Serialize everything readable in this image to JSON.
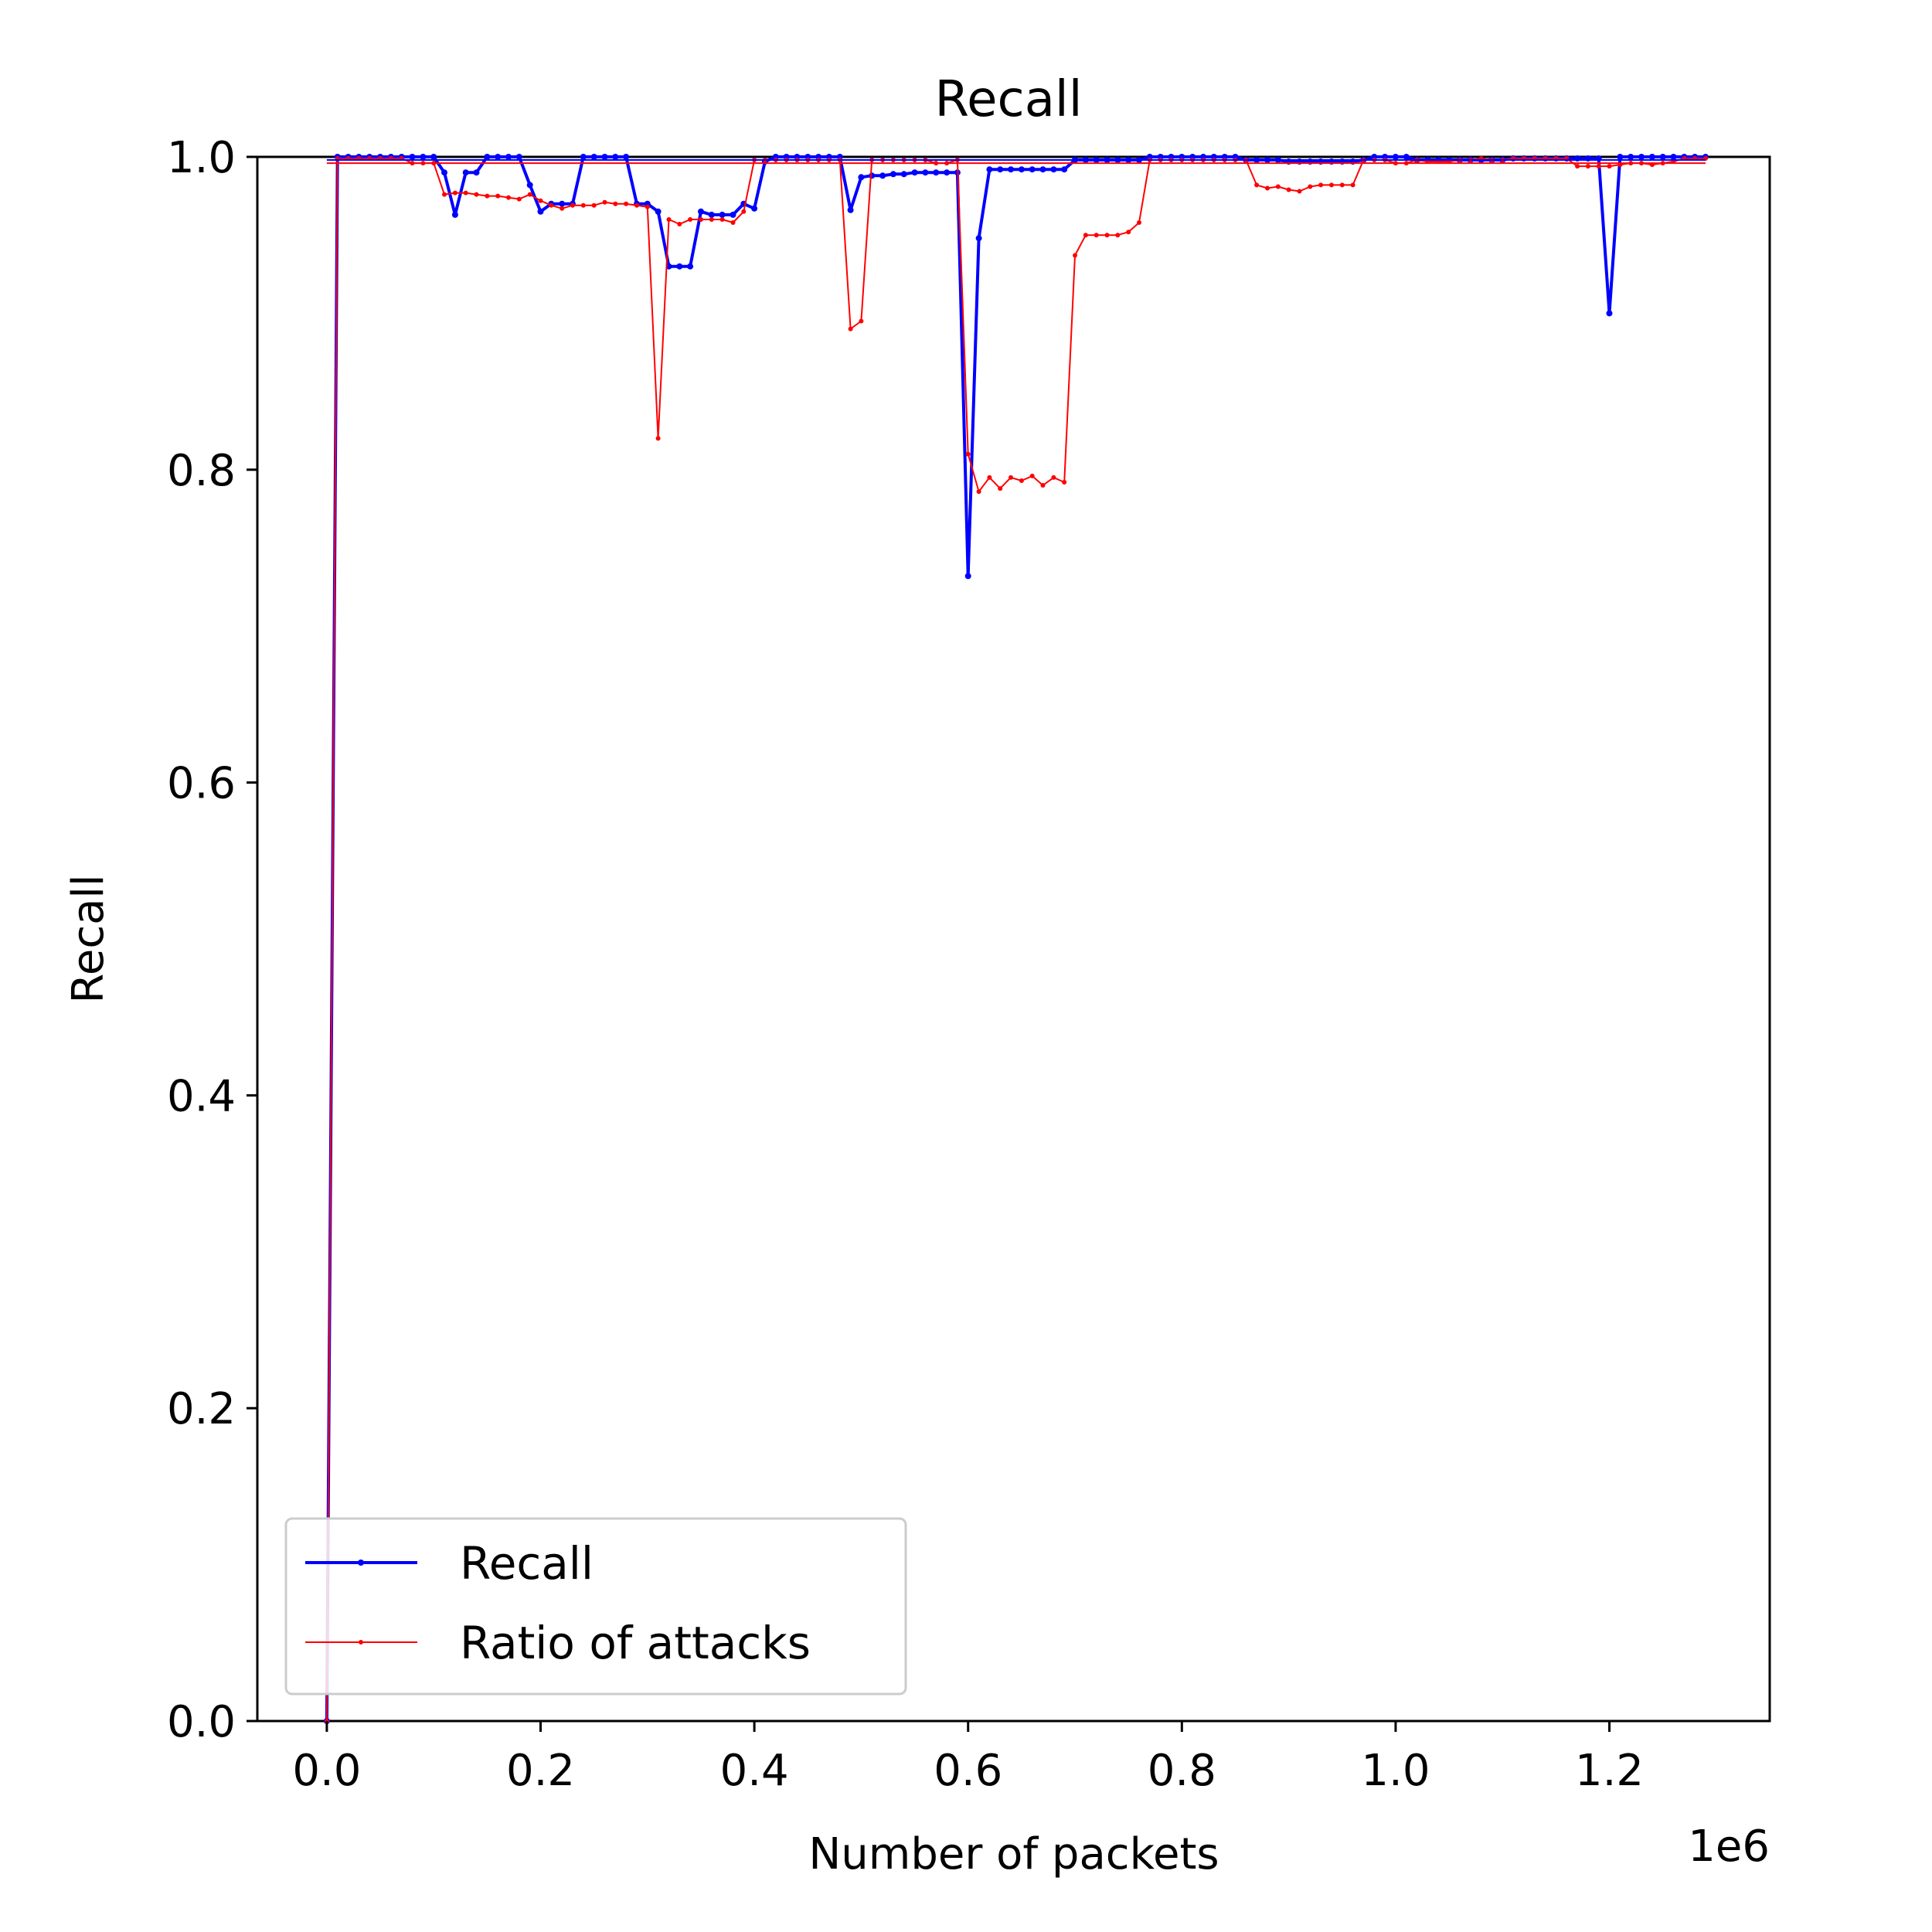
{
  "chart_data": {
    "type": "line",
    "title": "Recall",
    "xlabel": "Number of packets",
    "ylabel": "Recall",
    "x_offset_label": "1e6",
    "xlim": [
      -0.065,
      1.35
    ],
    "ylim": [
      0.0,
      1.0
    ],
    "xticks": [
      0.0,
      0.2,
      0.4,
      0.6,
      0.8,
      1.0,
      1.2
    ],
    "xtick_labels": [
      "0.0",
      "0.2",
      "0.4",
      "0.6",
      "0.8",
      "1.0",
      "1.2"
    ],
    "yticks": [
      0.0,
      0.2,
      0.4,
      0.6,
      0.8,
      1.0
    ],
    "ytick_labels": [
      "0.0",
      "0.2",
      "0.4",
      "0.6",
      "0.8",
      "1.0"
    ],
    "grid": false,
    "legend_position": "lower-left",
    "series": [
      {
        "name": "Recall",
        "color": "#0000ff",
        "x": [
          0.0,
          0.01,
          0.02,
          0.03,
          0.04,
          0.05,
          0.06,
          0.07,
          0.08,
          0.09,
          0.1,
          0.11,
          0.12,
          0.13,
          0.14,
          0.15,
          0.16,
          0.17,
          0.18,
          0.19,
          0.2,
          0.21,
          0.22,
          0.23,
          0.24,
          0.25,
          0.26,
          0.27,
          0.28,
          0.29,
          0.3,
          0.31,
          0.32,
          0.33,
          0.34,
          0.35,
          0.36,
          0.37,
          0.38,
          0.39,
          0.4,
          0.41,
          0.42,
          0.43,
          0.44,
          0.45,
          0.46,
          0.47,
          0.48,
          0.49,
          0.5,
          0.51,
          0.52,
          0.53,
          0.54,
          0.55,
          0.56,
          0.57,
          0.58,
          0.59,
          0.6,
          0.61,
          0.62,
          0.63,
          0.64,
          0.65,
          0.66,
          0.67,
          0.68,
          0.69,
          0.7,
          0.71,
          0.72,
          0.73,
          0.74,
          0.75,
          0.76,
          0.77,
          0.78,
          0.79,
          0.8,
          0.81,
          0.82,
          0.83,
          0.84,
          0.85,
          0.86,
          0.87,
          0.88,
          0.89,
          0.9,
          0.91,
          0.92,
          0.93,
          0.94,
          0.95,
          0.96,
          0.97,
          0.98,
          0.99,
          1.0,
          1.01,
          1.02,
          1.03,
          1.04,
          1.05,
          1.06,
          1.07,
          1.08,
          1.09,
          1.1,
          1.11,
          1.12,
          1.13,
          1.14,
          1.15,
          1.16,
          1.17,
          1.18,
          1.19,
          1.2,
          1.21,
          1.22,
          1.23,
          1.24,
          1.25,
          1.26,
          1.27,
          1.28,
          1.29
        ],
        "y": [
          0.0,
          1.0,
          1.0,
          1.0,
          1.0,
          1.0,
          1.0,
          1.0,
          1.0,
          1.0,
          1.0,
          0.99,
          0.963,
          0.99,
          0.99,
          1.0,
          1.0,
          1.0,
          1.0,
          0.982,
          0.965,
          0.97,
          0.97,
          0.97,
          1.0,
          1.0,
          1.0,
          1.0,
          1.0,
          0.97,
          0.97,
          0.965,
          0.93,
          0.93,
          0.93,
          0.965,
          0.963,
          0.963,
          0.963,
          0.97,
          0.967,
          0.997,
          1.0,
          1.0,
          1.0,
          1.0,
          1.0,
          1.0,
          1.0,
          0.966,
          0.987,
          0.988,
          0.988,
          0.989,
          0.989,
          0.99,
          0.99,
          0.99,
          0.99,
          0.99,
          0.732,
          0.948,
          0.992,
          0.992,
          0.992,
          0.992,
          0.992,
          0.992,
          0.992,
          0.992,
          0.998,
          0.998,
          0.998,
          0.998,
          0.998,
          0.998,
          0.998,
          1.0,
          1.0,
          1.0,
          1.0,
          1.0,
          1.0,
          1.0,
          1.0,
          1.0,
          0.998,
          0.998,
          0.998,
          0.998,
          0.997,
          0.997,
          0.997,
          0.997,
          0.997,
          0.997,
          0.997,
          0.998,
          1.0,
          1.0,
          1.0,
          1.0,
          0.998,
          0.998,
          0.998,
          0.998,
          0.998,
          0.998,
          0.998,
          0.998,
          0.998,
          0.999,
          0.999,
          0.999,
          0.999,
          0.999,
          0.999,
          0.999,
          0.999,
          0.999,
          0.9,
          1.0,
          1.0,
          1.0,
          1.0,
          1.0,
          1.0,
          1.0,
          1.0,
          1.0
        ]
      },
      {
        "name": "Ratio of attacks",
        "color": "#ff0000",
        "x": [
          0.0,
          0.01,
          0.02,
          0.03,
          0.04,
          0.05,
          0.06,
          0.07,
          0.08,
          0.09,
          0.1,
          0.11,
          0.12,
          0.13,
          0.14,
          0.15,
          0.16,
          0.17,
          0.18,
          0.19,
          0.2,
          0.21,
          0.22,
          0.23,
          0.24,
          0.25,
          0.26,
          0.27,
          0.28,
          0.29,
          0.3,
          0.31,
          0.32,
          0.33,
          0.34,
          0.35,
          0.36,
          0.37,
          0.38,
          0.39,
          0.4,
          0.41,
          0.42,
          0.43,
          0.44,
          0.45,
          0.46,
          0.47,
          0.48,
          0.49,
          0.5,
          0.51,
          0.52,
          0.53,
          0.54,
          0.55,
          0.56,
          0.57,
          0.58,
          0.59,
          0.6,
          0.61,
          0.62,
          0.63,
          0.64,
          0.65,
          0.66,
          0.67,
          0.68,
          0.69,
          0.7,
          0.71,
          0.72,
          0.73,
          0.74,
          0.75,
          0.76,
          0.77,
          0.78,
          0.79,
          0.8,
          0.81,
          0.82,
          0.83,
          0.84,
          0.85,
          0.86,
          0.87,
          0.88,
          0.89,
          0.9,
          0.91,
          0.92,
          0.93,
          0.94,
          0.95,
          0.96,
          0.97,
          0.98,
          0.99,
          1.0,
          1.01,
          1.02,
          1.03,
          1.04,
          1.05,
          1.06,
          1.07,
          1.08,
          1.09,
          1.1,
          1.11,
          1.12,
          1.13,
          1.14,
          1.15,
          1.16,
          1.17,
          1.18,
          1.19,
          1.2,
          1.21,
          1.22,
          1.23,
          1.24,
          1.25,
          1.26,
          1.27,
          1.28,
          1.29
        ],
        "y": [
          0.0,
          0.999,
          0.999,
          0.999,
          0.999,
          0.999,
          0.999,
          0.999,
          0.996,
          0.996,
          0.996,
          0.976,
          0.977,
          0.977,
          0.976,
          0.975,
          0.975,
          0.974,
          0.973,
          0.976,
          0.972,
          0.969,
          0.967,
          0.969,
          0.969,
          0.969,
          0.971,
          0.97,
          0.97,
          0.969,
          0.968,
          0.82,
          0.96,
          0.957,
          0.96,
          0.96,
          0.96,
          0.96,
          0.958,
          0.965,
          0.998,
          0.998,
          0.998,
          0.998,
          0.998,
          0.998,
          0.998,
          0.998,
          0.998,
          0.89,
          0.895,
          0.998,
          0.998,
          0.998,
          0.998,
          0.998,
          0.998,
          0.996,
          0.996,
          0.998,
          0.81,
          0.786,
          0.795,
          0.788,
          0.795,
          0.793,
          0.796,
          0.79,
          0.795,
          0.792,
          0.937,
          0.95,
          0.95,
          0.95,
          0.95,
          0.952,
          0.958,
          0.998,
          0.998,
          0.998,
          0.998,
          0.998,
          0.998,
          0.998,
          0.998,
          0.998,
          0.998,
          0.982,
          0.98,
          0.981,
          0.979,
          0.978,
          0.981,
          0.982,
          0.982,
          0.982,
          0.982,
          0.998,
          0.998,
          0.998,
          0.996,
          0.996,
          0.998,
          0.997,
          0.997,
          0.997,
          0.998,
          0.998,
          0.999,
          0.998,
          0.998,
          0.999,
          0.999,
          0.999,
          0.999,
          0.999,
          0.999,
          0.994,
          0.994,
          0.994,
          0.994,
          0.995,
          0.996,
          0.996,
          0.995,
          0.996,
          0.997,
          0.999,
          0.999,
          0.999
        ]
      }
    ]
  }
}
